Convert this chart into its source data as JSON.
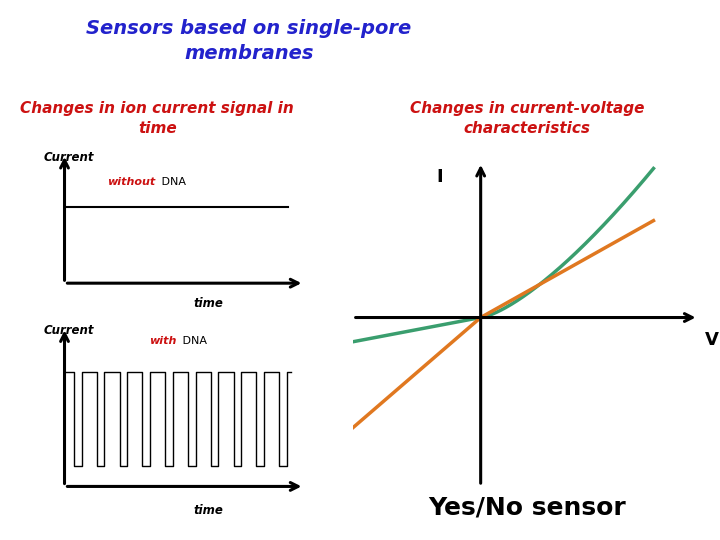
{
  "title": "Sensors based on single-pore\nmembranes",
  "title_color": "#2222cc",
  "title_fontsize": 14,
  "bg_color": "#ffffff",
  "header_bar_color": "#e8a020",
  "left_title_line1": "Changes in ion current signal in",
  "left_title_line2": "time",
  "right_title_line1": "Changes in current-voltage",
  "right_title_line2": "characteristics",
  "section_title_color": "#cc1111",
  "section_title_fontsize": 11,
  "current_label": "Current",
  "time_label": "time",
  "without_word": "without",
  "dna_word": " DNA",
  "with_word": "with",
  "iv_curve1_color": "#3a9e6e",
  "iv_curve2_color": "#e07820",
  "yes_no_text": "Yes/No sensor",
  "yes_no_fontsize": 18,
  "I_label": "I",
  "V_label": "V"
}
